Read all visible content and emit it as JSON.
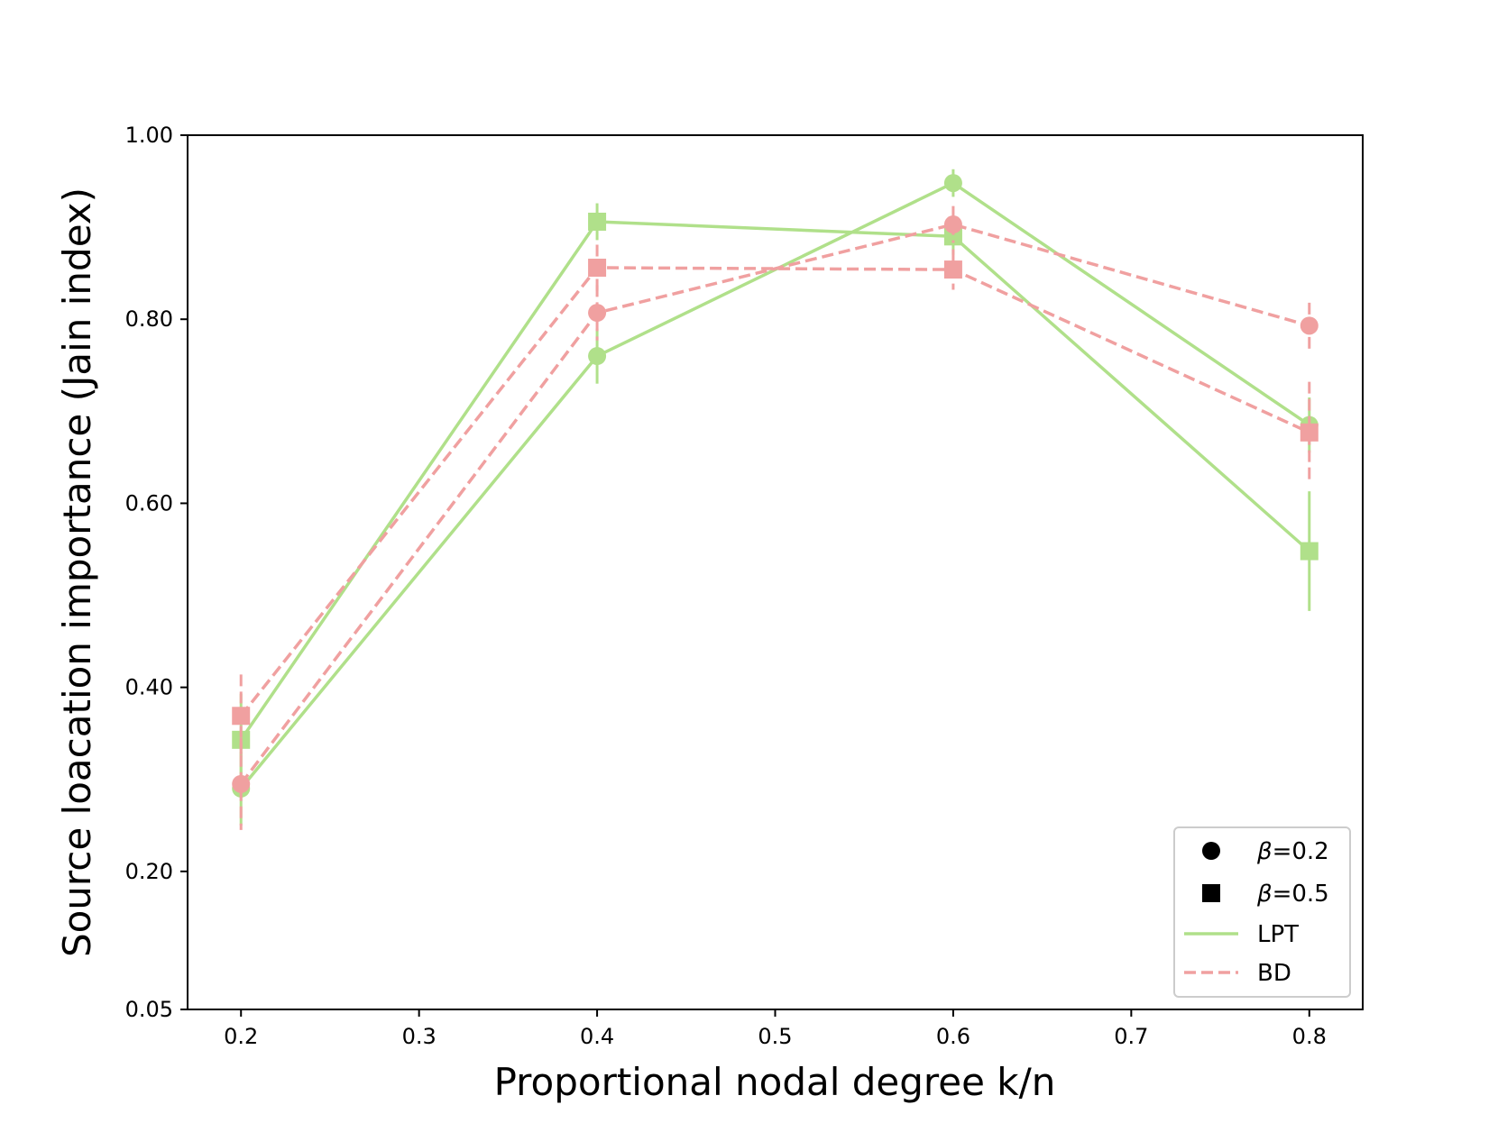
{
  "chart_data": {
    "type": "line",
    "title": "",
    "xlabel": "Proportional nodal degree k/n",
    "ylabel": "Source loacation importance (Jain index)",
    "xlim": [
      0.17,
      0.83
    ],
    "ylim": [
      0.05,
      1.0
    ],
    "x_ticks": [
      0.2,
      0.3,
      0.4,
      0.5,
      0.6,
      0.7,
      0.8
    ],
    "x_tick_labels": [
      "0.2",
      "0.3",
      "0.4",
      "0.5",
      "0.6",
      "0.7",
      "0.8"
    ],
    "y_ticks": [
      0.05,
      0.2,
      0.4,
      0.6,
      0.8,
      1.0
    ],
    "y_tick_labels": [
      "0.05",
      "0.20",
      "0.40",
      "0.60",
      "0.80",
      "1.00"
    ],
    "grid": false,
    "legend_position": "bottom-right",
    "legend": [
      {
        "kind": "marker",
        "marker": "circle",
        "symbol": "β",
        "label": "=0.2"
      },
      {
        "kind": "marker",
        "marker": "square",
        "symbol": "β",
        "label": "=0.5"
      },
      {
        "kind": "line",
        "style": "solid",
        "color": "#b0e08a",
        "label": "LPT"
      },
      {
        "kind": "line",
        "style": "dashed",
        "color": "#f0a0a0",
        "label": "BD"
      }
    ],
    "colors": {
      "LPT": "#b0e08a",
      "BD": "#f0a0a0"
    },
    "series": [
      {
        "method": "LPT",
        "beta": 0.2,
        "marker": "circle",
        "style": "solid",
        "x": [
          0.2,
          0.4,
          0.6,
          0.8
        ],
        "y": [
          0.29,
          0.76,
          0.948,
          0.685
        ],
        "err": [
          0.04,
          0.03,
          0.015,
          0.03
        ]
      },
      {
        "method": "LPT",
        "beta": 0.5,
        "marker": "square",
        "style": "solid",
        "x": [
          0.2,
          0.4,
          0.6,
          0.8
        ],
        "y": [
          0.343,
          0.906,
          0.89,
          0.548
        ],
        "err": [
          0.05,
          0.02,
          0.02,
          0.065
        ]
      },
      {
        "method": "BD",
        "beta": 0.2,
        "marker": "circle",
        "style": "dashed",
        "x": [
          0.2,
          0.4,
          0.6,
          0.8
        ],
        "y": [
          0.295,
          0.807,
          0.903,
          0.793
        ],
        "err": [
          0.05,
          0.03,
          0.02,
          0.025
        ]
      },
      {
        "method": "BD",
        "beta": 0.5,
        "marker": "square",
        "style": "dashed",
        "x": [
          0.2,
          0.4,
          0.6,
          0.8
        ],
        "y": [
          0.369,
          0.856,
          0.854,
          0.677
        ],
        "err": [
          0.045,
          0.025,
          0.022,
          0.055
        ]
      }
    ]
  }
}
